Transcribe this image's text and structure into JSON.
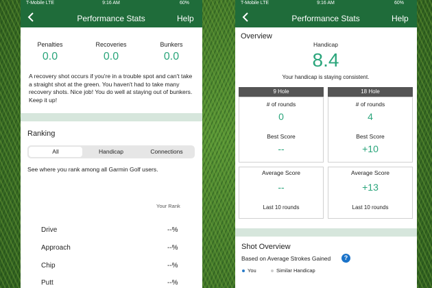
{
  "left_screen": {
    "status": {
      "carrier": "T-Mobile LTE",
      "time": "9:16 AM",
      "battery": "60%"
    },
    "header": {
      "title": "Performance Stats",
      "action": "Help"
    },
    "stats": [
      {
        "label": "Penalties",
        "value": "0.0"
      },
      {
        "label": "Recoveries",
        "value": "0.0"
      },
      {
        "label": "Bunkers",
        "value": "0.0"
      }
    ],
    "description": "A recovery shot occurs if you're in a trouble spot and can't take a straight shot at the green. You haven't had to take many recovery shots. Nice job! You do well at staying out of bunkers. Keep it up!",
    "ranking": {
      "title": "Ranking",
      "tabs": [
        "All",
        "Handicap",
        "Connections"
      ],
      "note": "See where you rank among all Garmin Golf users.",
      "column": "Your Rank",
      "rows": [
        {
          "label": "Drive",
          "value": "--%"
        },
        {
          "label": "Approach",
          "value": "--%"
        },
        {
          "label": "Chip",
          "value": "--%"
        },
        {
          "label": "Putt",
          "value": "--%"
        }
      ]
    }
  },
  "right_screen": {
    "status": {
      "carrier": "T-Mobile LTE",
      "time": "9:16 AM",
      "battery": "60%"
    },
    "header": {
      "title": "Performance Stats",
      "action": "Help"
    },
    "overview": {
      "title": "Overview",
      "handicap_label": "Handicap",
      "handicap": "8.4",
      "handicap_note": "Your handicap is staying consistent.",
      "columns": [
        {
          "header": "9 Hole",
          "rounds_label": "# of rounds",
          "rounds": "0",
          "best_label": "Best Score",
          "best": "--",
          "avg_label": "Average Score",
          "avg": "--",
          "avg_note": "Last 10 rounds"
        },
        {
          "header": "18 Hole",
          "rounds_label": "# of rounds",
          "rounds": "4",
          "best_label": "Best Score",
          "best": "+10",
          "avg_label": "Average Score",
          "avg": "+13",
          "avg_note": "Last 10 rounds"
        }
      ]
    },
    "shot_overview": {
      "title": "Shot Overview",
      "subtitle": "Based on Average Strokes Gained",
      "legend": [
        "You",
        "Similar Handicap"
      ]
    }
  }
}
